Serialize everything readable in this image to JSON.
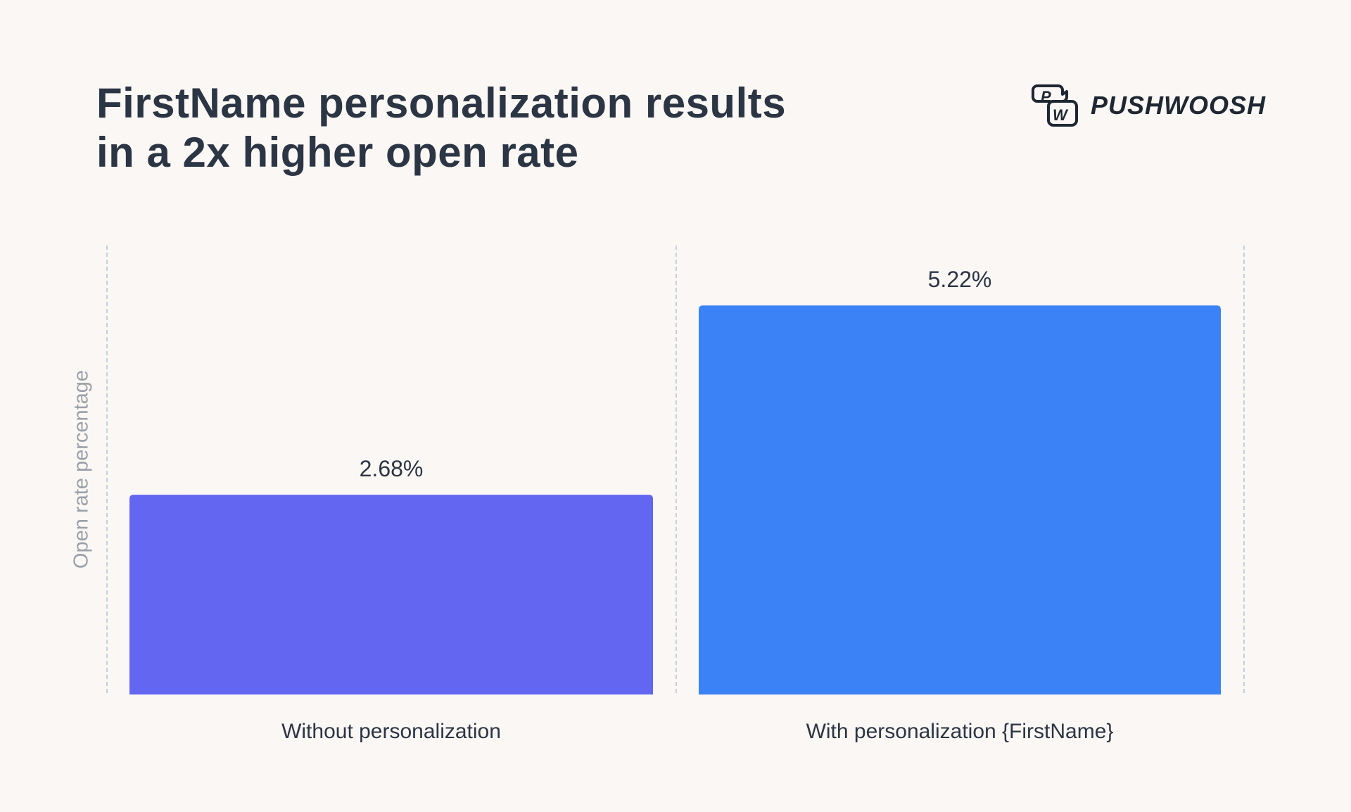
{
  "title_lines": [
    "FirstName personalization results",
    "in a 2x higher open rate"
  ],
  "logo": {
    "text": "PUSHWOOSH",
    "mark": "PW"
  },
  "chart_data": {
    "type": "bar",
    "title": "FirstName personalization results in a 2x higher open rate",
    "categories": [
      "Without personalization",
      "With personalization {FirstName}"
    ],
    "values": [
      2.68,
      5.22
    ],
    "data_labels": [
      "2.68%",
      "5.22%"
    ],
    "xlabel": "",
    "ylabel": "Open rate percentage",
    "ylim": [
      0,
      6
    ],
    "grid": false,
    "colors": [
      "#6366f1",
      "#3b82f6"
    ],
    "label_color": "#2b3544",
    "divider_color": "#b8c2d0"
  }
}
